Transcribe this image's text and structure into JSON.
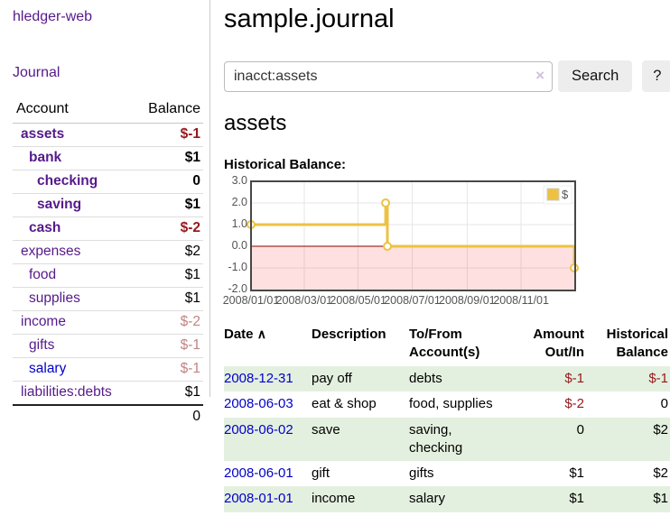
{
  "app": {
    "brand": "hledger-web",
    "nav_journal": "Journal"
  },
  "colors": {
    "link_purple": "#551a8b",
    "link_blue": "#0000cc",
    "negative_dark": "#96181c",
    "negative_soft": "#c08484",
    "row_green": "#e4f0df",
    "button_bg": "#ededed",
    "chart_line": "#edc240",
    "chart_border": "#474747",
    "zero_line": "#8b0000"
  },
  "sidebar": {
    "headers": {
      "account": "Account",
      "balance": "Balance"
    },
    "accounts": [
      {
        "name": "assets",
        "indent": 1,
        "in_query": true,
        "balance": "$-1",
        "tone": "neg-dark"
      },
      {
        "name": "bank",
        "indent": 2,
        "in_query": true,
        "balance": "$1",
        "tone": "normal"
      },
      {
        "name": "checking",
        "indent": 3,
        "in_query": true,
        "balance": "0",
        "tone": "normal"
      },
      {
        "name": "saving",
        "indent": 3,
        "in_query": true,
        "balance": "$1",
        "tone": "normal"
      },
      {
        "name": "cash",
        "indent": 2,
        "in_query": true,
        "balance": "$-2",
        "tone": "neg-dark"
      },
      {
        "name": "expenses",
        "indent": 1,
        "in_query": false,
        "balance": "$2",
        "tone": "normal"
      },
      {
        "name": "food",
        "indent": 2,
        "in_query": false,
        "balance": "$1",
        "tone": "normal"
      },
      {
        "name": "supplies",
        "indent": 2,
        "in_query": false,
        "balance": "$1",
        "tone": "normal"
      },
      {
        "name": "income",
        "indent": 1,
        "in_query": false,
        "balance": "$-2",
        "tone": "neg-soft"
      },
      {
        "name": "gifts",
        "indent": 2,
        "in_query": false,
        "balance": "$-1",
        "tone": "neg-soft"
      },
      {
        "name": "salary",
        "indent": 2,
        "in_query": false,
        "balance": "$-1",
        "tone": "neg-soft",
        "link_color": "blue"
      },
      {
        "name": "liabilities:debts",
        "indent": 1,
        "in_query": false,
        "balance": "$1",
        "tone": "normal"
      }
    ],
    "total": "0"
  },
  "header": {
    "title": "sample.journal"
  },
  "search": {
    "value": "inacct:assets",
    "clear_icon": "×",
    "button": "Search",
    "help_button": "?"
  },
  "account_page": {
    "heading": "assets",
    "chart_label": "Historical Balance:"
  },
  "chart_data": {
    "type": "line",
    "step": true,
    "title": "Historical Balance of assets",
    "x_start": "2008-01-01",
    "x_end": "2008-12-31",
    "ylim": [
      -2,
      3
    ],
    "y_ticks": [
      {
        "label": "3.0",
        "value": 3
      },
      {
        "label": "2.0",
        "value": 2
      },
      {
        "label": "1.0",
        "value": 1
      },
      {
        "label": "0.0",
        "value": 0
      },
      {
        "label": "-1.0",
        "value": -1
      },
      {
        "label": "-2.0",
        "value": -2
      }
    ],
    "x_ticks": [
      {
        "label": "2008/01/01",
        "date": "2008-01-01"
      },
      {
        "label": "2008/03/01",
        "date": "2008-03-01"
      },
      {
        "label": "2008/05/01",
        "date": "2008-05-01"
      },
      {
        "label": "2008/07/01",
        "date": "2008-07-01"
      },
      {
        "label": "2008/09/01",
        "date": "2008-09-01"
      },
      {
        "label": "2008/11/01",
        "date": "2008-11-01"
      }
    ],
    "series": [
      {
        "name": "$",
        "color": "#edc240",
        "points": [
          {
            "date": "2008-01-01",
            "value": 1
          },
          {
            "date": "2008-06-01",
            "value": 2
          },
          {
            "date": "2008-06-03",
            "value": 0
          },
          {
            "date": "2008-12-31",
            "value": -1
          }
        ]
      }
    ],
    "legend": {
      "label": "$",
      "position": "top-right"
    },
    "grid": true,
    "markings": {
      "negative_region_fill": "rgba(255,0,0,0.12)",
      "zero_line_color": "#8b0000"
    }
  },
  "register": {
    "sort_icon": "∧",
    "columns": {
      "date": "Date",
      "description": "Description",
      "accounts": "To/From Account(s)",
      "amount": "Amount Out/In",
      "balance": "Historical Balance"
    },
    "rows": [
      {
        "date": "2008-12-31",
        "description": "pay off",
        "accounts": "debts",
        "amount": "$-1",
        "amount_negative": true,
        "balance": "$-1",
        "balance_negative": true
      },
      {
        "date": "2008-06-03",
        "description": "eat & shop",
        "accounts": "food, supplies",
        "amount": "$-2",
        "amount_negative": true,
        "balance": "0",
        "balance_negative": false
      },
      {
        "date": "2008-06-02",
        "description": "save",
        "accounts": "saving, checking",
        "amount": "0",
        "amount_negative": false,
        "balance": "$2",
        "balance_negative": false
      },
      {
        "date": "2008-06-01",
        "description": "gift",
        "accounts": "gifts",
        "amount": "$1",
        "amount_negative": false,
        "balance": "$2",
        "balance_negative": false
      },
      {
        "date": "2008-01-01",
        "description": "income",
        "accounts": "salary",
        "amount": "$1",
        "amount_negative": false,
        "balance": "$1",
        "balance_negative": false
      }
    ]
  }
}
